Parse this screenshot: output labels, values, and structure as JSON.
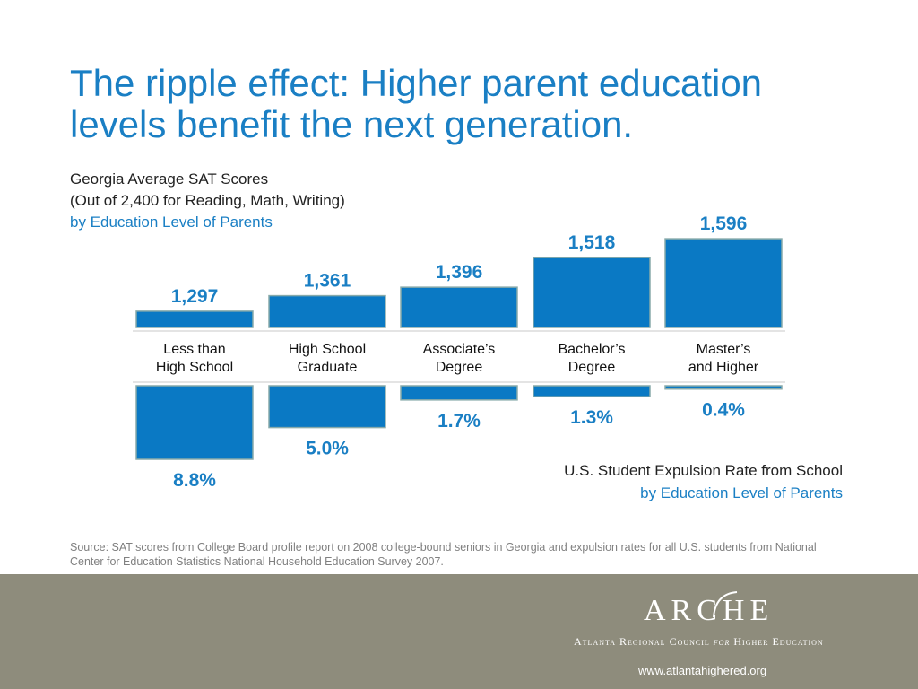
{
  "slide": {
    "title_line1": "The ripple effect: Higher parent education",
    "title_line2": "levels benefit the next generation."
  },
  "chart_data": [
    {
      "type": "bar",
      "title": "Georgia Average SAT Scores",
      "subtitle": "(Out of 2,400 for Reading, Math, Writing)",
      "subtitle2": "by Education Level of Parents",
      "categories": [
        [
          "Less than",
          "High School"
        ],
        [
          "High School",
          "Graduate"
        ],
        [
          "Associate’s",
          "Degree"
        ],
        [
          "Bachelor’s",
          "Degree"
        ],
        [
          "Master’s",
          "and Higher"
        ]
      ],
      "values": [
        1297,
        1361,
        1396,
        1518,
        1596
      ],
      "data_labels": [
        "1,297",
        "1,361",
        "1,396",
        "1,518",
        "1,596"
      ],
      "ylim": [
        1230,
        1600
      ],
      "bar_color": "#0a79c4"
    },
    {
      "type": "bar",
      "orientation": "downward",
      "title": "U.S. Student Expulsion Rate from School",
      "subtitle": "by Education Level of Parents",
      "values": [
        8.8,
        5.0,
        1.7,
        1.3,
        0.4
      ],
      "data_labels": [
        "8.8%",
        "5.0%",
        "1.7%",
        "1.3%",
        "0.4%"
      ],
      "ylim": [
        0,
        9.2
      ],
      "bar_color": "#0a79c4"
    }
  ],
  "source": "Source: SAT scores from College Board profile report on 2008 college-bound seniors in Georgia and expulsion rates for all U.S. students from National Center for Education Statistics National Household Education Survey 2007.",
  "footer": {
    "logo_word": "ARCHE",
    "logo_sub_pre": "Atlanta Regional Council ",
    "logo_sub_for": "for",
    "logo_sub_post": " Higher Education",
    "url": "www.atlantahighered.org"
  },
  "colors": {
    "accent": "#1a7fc4",
    "bar": "#0a79c4",
    "footer_bg": "#8e8c7c",
    "source_text": "#808080"
  }
}
